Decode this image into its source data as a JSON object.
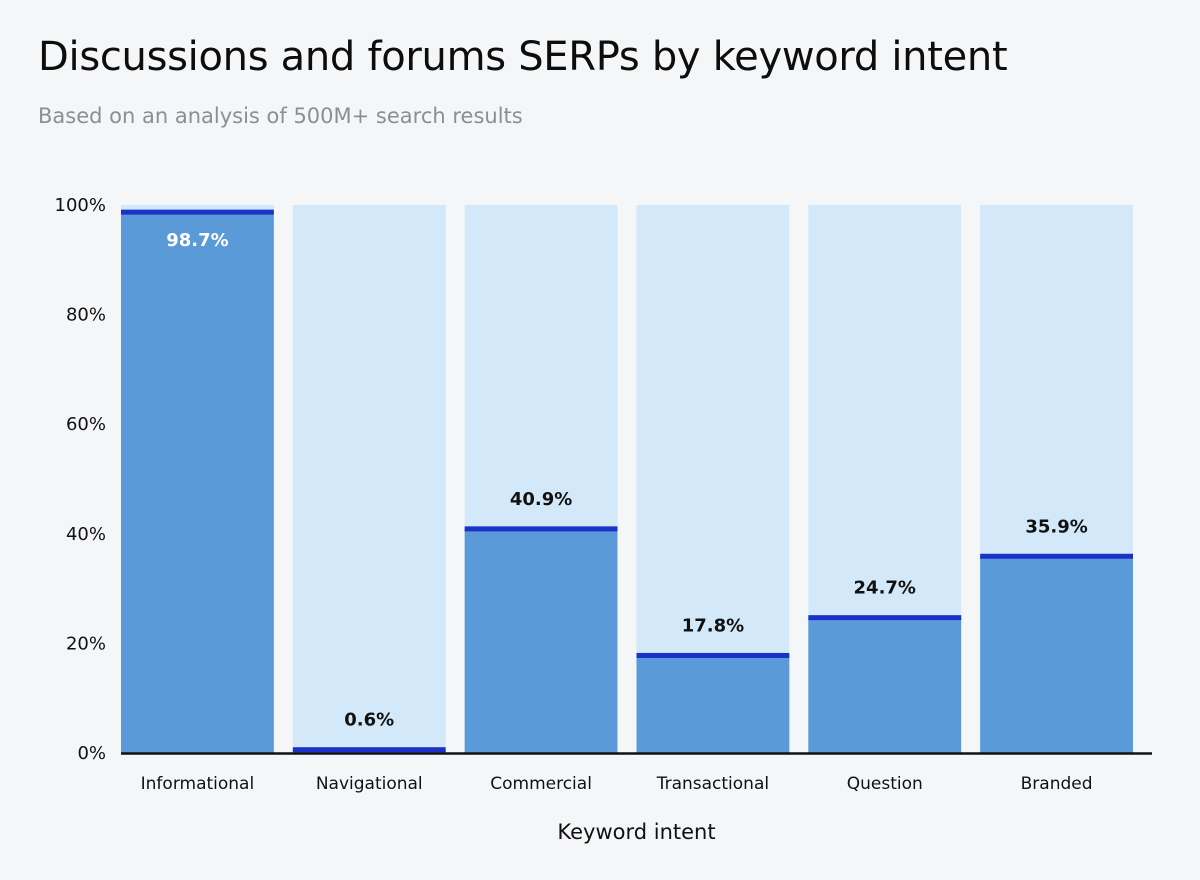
{
  "header": {
    "title": "Discussions and forums SERPs by keyword intent",
    "subtitle": "Based on an analysis of 500M+ search results"
  },
  "colors": {
    "background": "#f4f6f8",
    "track": "#d3e8f8",
    "fill": "#5b9ad9",
    "top_line": "#1a32c8",
    "axis": "#111111",
    "label_dark": "#111111",
    "label_light": "#ffffff"
  },
  "chart_data": {
    "type": "bar",
    "title": "Discussions and forums SERPs by keyword intent",
    "subtitle": "Based on an analysis of 500M+ search results",
    "xlabel": "Keyword intent",
    "ylabel": "",
    "categories": [
      "Informational",
      "Navigational",
      "Commercial",
      "Transactional",
      "Question",
      "Branded"
    ],
    "values": [
      98.7,
      0.6,
      40.9,
      17.8,
      24.7,
      35.9
    ],
    "value_labels": [
      "98.7%",
      "0.6%",
      "40.9%",
      "17.8%",
      "24.7%",
      "35.9%"
    ],
    "ylim": [
      0,
      100
    ],
    "yticks": [
      0,
      20,
      40,
      60,
      80,
      100
    ],
    "ytick_labels": [
      "0%",
      "20%",
      "40%",
      "60%",
      "80%",
      "100%"
    ],
    "grid": false,
    "legend": "none"
  }
}
